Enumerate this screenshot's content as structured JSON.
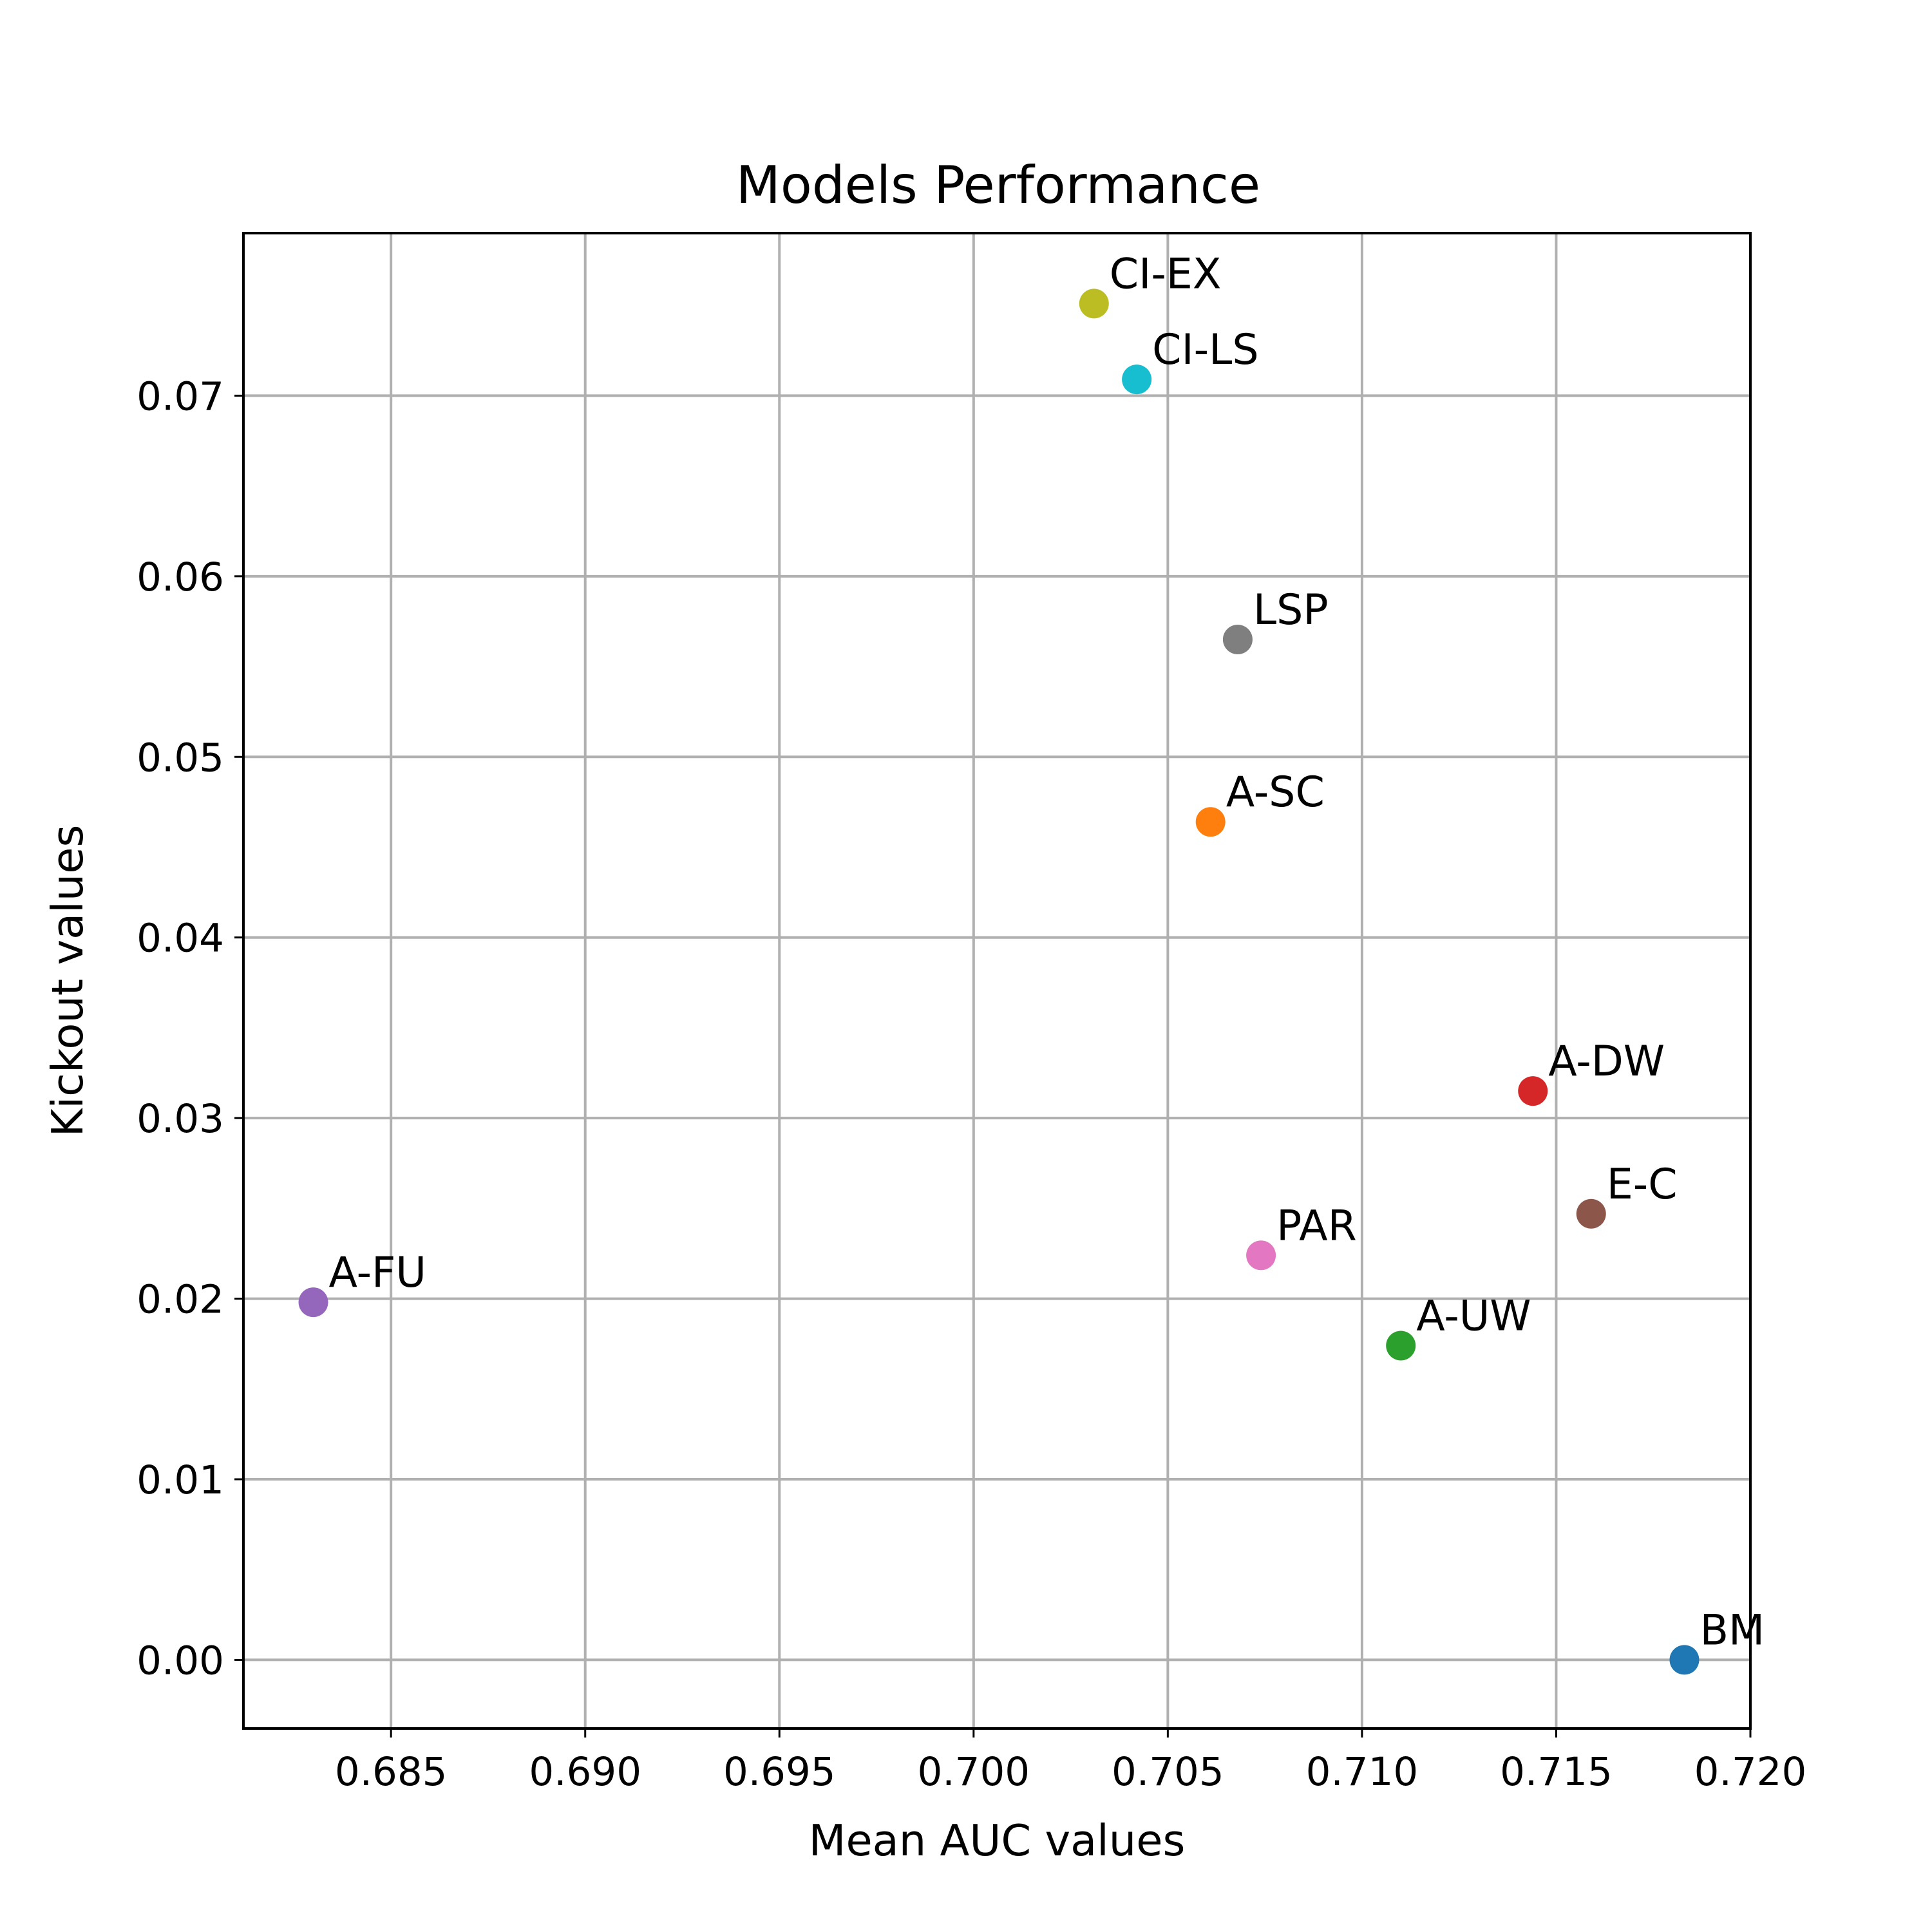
{
  "chart_data": {
    "type": "scatter",
    "title": "Models Performance",
    "xlabel": "Mean AUC values",
    "ylabel": "Kickout values",
    "xlim": [
      0.6812,
      0.72
    ],
    "ylim": [
      -0.0038,
      0.079
    ],
    "xticks": [
      0.685,
      0.69,
      0.695,
      0.7,
      0.705,
      0.71,
      0.715,
      0.72
    ],
    "xtick_labels": [
      "0.685",
      "0.690",
      "0.695",
      "0.700",
      "0.705",
      "0.710",
      "0.715",
      "0.720"
    ],
    "yticks": [
      0.0,
      0.01,
      0.02,
      0.03,
      0.04,
      0.05,
      0.06,
      0.07
    ],
    "ytick_labels": [
      "0.00",
      "0.01",
      "0.02",
      "0.03",
      "0.04",
      "0.05",
      "0.06",
      "0.07"
    ],
    "grid": true,
    "points": [
      {
        "label": "BM",
        "x": 0.7183,
        "y": 0.0,
        "color": "#1f77b4"
      },
      {
        "label": "A-SC",
        "x": 0.7061,
        "y": 0.0464,
        "color": "#ff7f0e"
      },
      {
        "label": "A-UW",
        "x": 0.711,
        "y": 0.0174,
        "color": "#2ca02c"
      },
      {
        "label": "A-DW",
        "x": 0.7144,
        "y": 0.0315,
        "color": "#d62728"
      },
      {
        "label": "A-FU",
        "x": 0.683,
        "y": 0.0198,
        "color": "#9467bd"
      },
      {
        "label": "E-C",
        "x": 0.7159,
        "y": 0.0247,
        "color": "#8c564b"
      },
      {
        "label": "PAR",
        "x": 0.7074,
        "y": 0.0224,
        "color": "#e377c2"
      },
      {
        "label": "LSP",
        "x": 0.7068,
        "y": 0.0565,
        "color": "#7f7f7f"
      },
      {
        "label": "CI-EX",
        "x": 0.7031,
        "y": 0.0751,
        "color": "#bcbd22"
      },
      {
        "label": "CI-LS",
        "x": 0.7042,
        "y": 0.0709,
        "color": "#17becf"
      }
    ]
  }
}
